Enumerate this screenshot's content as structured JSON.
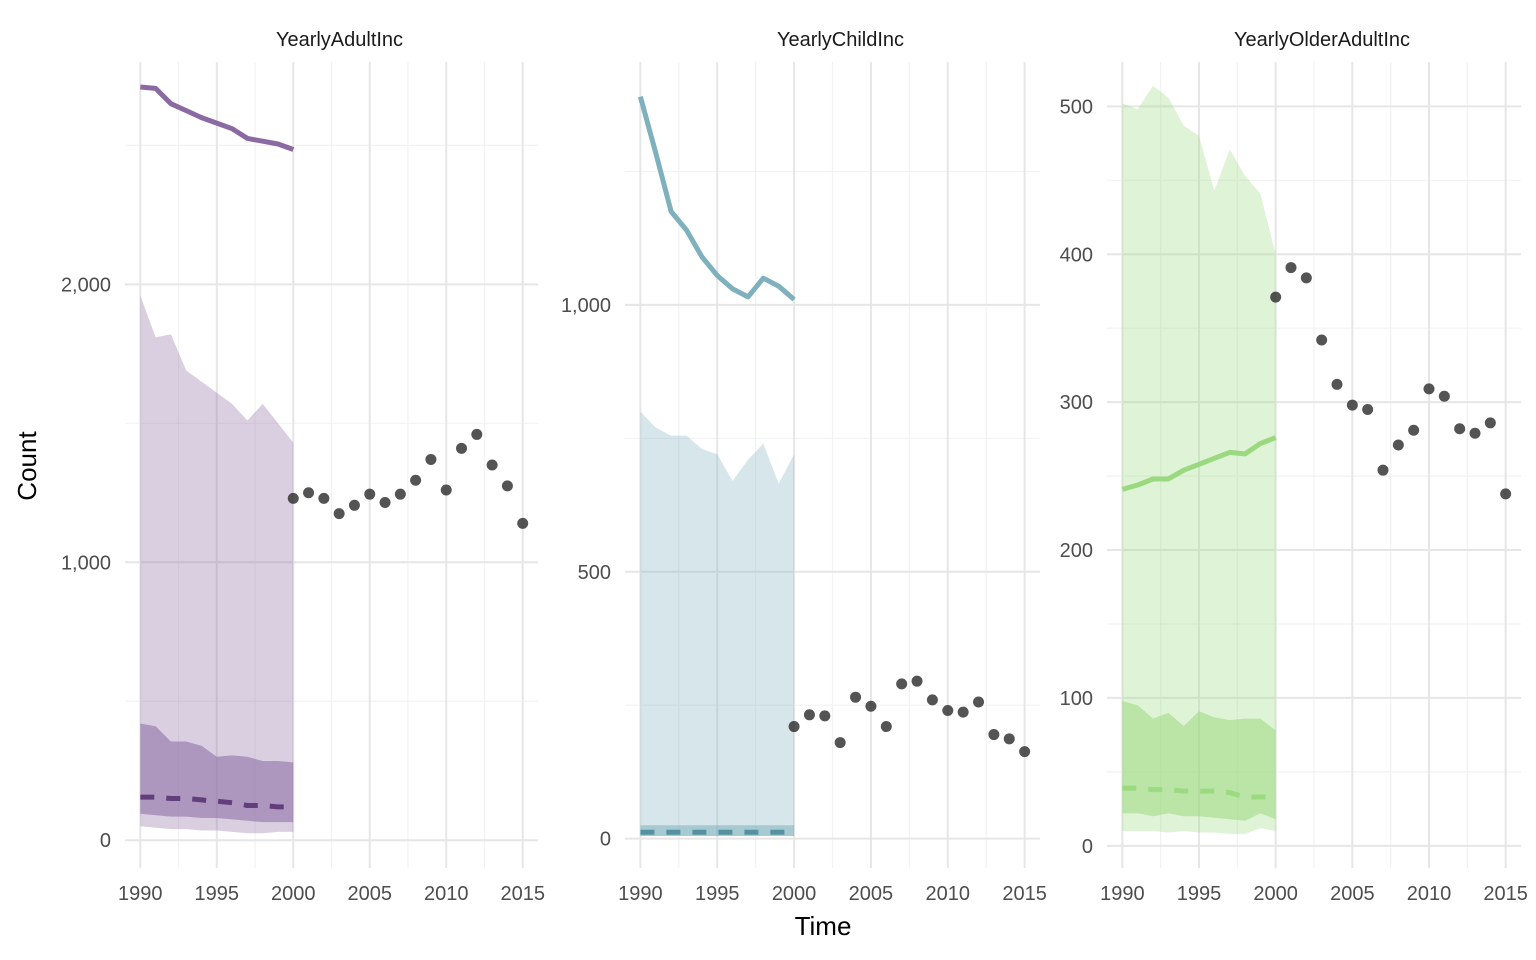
{
  "figure": {
    "xlabel": "Time",
    "ylabel": "Count"
  },
  "colors": {
    "background": "#ffffff",
    "grid_major": "#e6e6e6",
    "grid_minor": "#f2f2f2",
    "observed_points": "#2e2e2e"
  },
  "chart_data": [
    {
      "type": "line",
      "title": "YearlyAdultInc",
      "xlim": [
        1989,
        2016
      ],
      "ylim": [
        -100,
        2800
      ],
      "x_ticks": [
        1990,
        1995,
        2000,
        2005,
        2010,
        2015
      ],
      "y_ticks": [
        0,
        1000,
        2000
      ],
      "y_tick_labels": [
        "0",
        "1,000",
        "2,000"
      ],
      "y_minor": [
        500,
        1500,
        2500
      ],
      "color": "#8b6aa3",
      "median_color": "#5e3a78",
      "series": [
        {
          "kind": "solid_line",
          "x": [
            1990,
            1991,
            1992,
            1993,
            1994,
            1995,
            1996,
            1997,
            1998,
            1999,
            2000
          ],
          "y": [
            2710,
            2705,
            2650,
            2625,
            2600,
            2580,
            2560,
            2525,
            2515,
            2505,
            2485
          ]
        },
        {
          "kind": "outer_band",
          "x": [
            1990,
            1991,
            1992,
            1993,
            1994,
            1995,
            1996,
            1997,
            1998,
            1999,
            2000
          ],
          "low": [
            50,
            45,
            40,
            40,
            35,
            35,
            30,
            25,
            25,
            30,
            30
          ],
          "high": [
            1960,
            1810,
            1820,
            1690,
            1650,
            1610,
            1570,
            1510,
            1570,
            1500,
            1430
          ]
        },
        {
          "kind": "inner_band",
          "x": [
            1990,
            1991,
            1992,
            1993,
            1994,
            1995,
            1996,
            1997,
            1998,
            1999,
            2000
          ],
          "low": [
            95,
            90,
            85,
            85,
            80,
            80,
            75,
            70,
            65,
            65,
            65
          ],
          "high": [
            420,
            410,
            355,
            355,
            340,
            300,
            305,
            300,
            285,
            285,
            280
          ]
        },
        {
          "kind": "dashed_line",
          "x": [
            1990,
            1991,
            1992,
            1993,
            1994,
            1995,
            1996,
            1997,
            1998,
            1999,
            2000
          ],
          "y": [
            155,
            155,
            150,
            150,
            145,
            140,
            135,
            125,
            125,
            120,
            120
          ]
        },
        {
          "kind": "points",
          "x": [
            2000,
            2001,
            2002,
            2003,
            2004,
            2005,
            2006,
            2007,
            2008,
            2009,
            2010,
            2011,
            2012,
            2013,
            2014,
            2015
          ],
          "y": [
            1230,
            1250,
            1230,
            1175,
            1205,
            1245,
            1215,
            1245,
            1295,
            1370,
            1260,
            1410,
            1460,
            1350,
            1275,
            1140
          ]
        }
      ]
    },
    {
      "type": "line",
      "title": "YearlyChildInc",
      "xlim": [
        1989,
        2016
      ],
      "ylim": [
        -55,
        1455
      ],
      "x_ticks": [
        1990,
        1995,
        2000,
        2005,
        2010,
        2015
      ],
      "y_ticks": [
        0,
        500,
        1000
      ],
      "y_tick_labels": [
        "0",
        "500",
        "1,000"
      ],
      "y_minor": [
        250,
        750,
        1250
      ],
      "color": "#7fb0bd",
      "median_color": "#4f8f9e",
      "series": [
        {
          "kind": "solid_line",
          "x": [
            1990,
            1991,
            1992,
            1993,
            1994,
            1995,
            1996,
            1997,
            1998,
            1999,
            2000
          ],
          "y": [
            1390,
            1285,
            1175,
            1140,
            1090,
            1055,
            1030,
            1015,
            1050,
            1035,
            1010
          ]
        },
        {
          "kind": "outer_band",
          "x": [
            1990,
            1991,
            1992,
            1993,
            1994,
            1995,
            1996,
            1997,
            1998,
            1999,
            2000
          ],
          "low": [
            5,
            5,
            5,
            5,
            5,
            5,
            5,
            5,
            5,
            5,
            5
          ],
          "high": [
            800,
            770,
            755,
            755,
            730,
            720,
            670,
            710,
            740,
            665,
            720
          ]
        },
        {
          "kind": "inner_band",
          "x": [
            1990,
            1991,
            1992,
            1993,
            1994,
            1995,
            1996,
            1997,
            1998,
            1999,
            2000
          ],
          "low": [
            5,
            5,
            5,
            5,
            5,
            5,
            5,
            5,
            5,
            5,
            5
          ],
          "high": [
            25,
            25,
            25,
            25,
            25,
            25,
            25,
            25,
            25,
            25,
            25
          ]
        },
        {
          "kind": "dashed_line",
          "x": [
            1990,
            1991,
            1992,
            1993,
            1994,
            1995,
            1996,
            1997,
            1998,
            1999,
            2000
          ],
          "y": [
            12,
            12,
            12,
            12,
            12,
            12,
            12,
            12,
            12,
            12,
            12
          ]
        },
        {
          "kind": "points",
          "x": [
            2000,
            2001,
            2002,
            2003,
            2004,
            2005,
            2006,
            2007,
            2008,
            2009,
            2010,
            2011,
            2012,
            2013,
            2014,
            2015
          ],
          "y": [
            210,
            232,
            230,
            180,
            265,
            248,
            210,
            290,
            295,
            260,
            240,
            237,
            256,
            195,
            187,
            163
          ]
        }
      ]
    },
    {
      "type": "line",
      "title": "YearlyOlderAdultInc",
      "xlim": [
        1989,
        2016
      ],
      "ylim": [
        -15,
        530
      ],
      "x_ticks": [
        1990,
        1995,
        2000,
        2005,
        2010,
        2015
      ],
      "y_ticks": [
        0,
        100,
        200,
        300,
        400,
        500
      ],
      "y_tick_labels": [
        "0",
        "100",
        "200",
        "300",
        "400",
        "500"
      ],
      "y_minor": [
        50,
        150,
        250,
        350,
        450
      ],
      "color": "#9ad97f",
      "median_color": "#9ad97f",
      "series": [
        {
          "kind": "solid_line",
          "x": [
            1990,
            1991,
            1992,
            1993,
            1994,
            1995,
            1996,
            1997,
            1998,
            1999,
            2000
          ],
          "y": [
            241,
            244,
            248,
            248,
            254,
            258,
            262,
            266,
            265,
            272,
            276
          ]
        },
        {
          "kind": "outer_band",
          "x": [
            1990,
            1991,
            1992,
            1993,
            1994,
            1995,
            1996,
            1997,
            1998,
            1999,
            2000
          ],
          "low": [
            10,
            10,
            10,
            9,
            10,
            9,
            9,
            8,
            8,
            12,
            10
          ],
          "high": [
            502,
            498,
            514,
            506,
            487,
            480,
            443,
            471,
            453,
            441,
            400
          ]
        },
        {
          "kind": "inner_band",
          "x": [
            1990,
            1991,
            1992,
            1993,
            1994,
            1995,
            1996,
            1997,
            1998,
            1999,
            2000
          ],
          "low": [
            22,
            22,
            20,
            22,
            20,
            20,
            19,
            18,
            17,
            22,
            18
          ],
          "high": [
            98,
            95,
            86,
            90,
            81,
            91,
            87,
            85,
            86,
            86,
            78
          ]
        },
        {
          "kind": "dashed_line",
          "x": [
            1990,
            1991,
            1992,
            1993,
            1994,
            1995,
            1996,
            1997,
            1998,
            1999,
            2000
          ],
          "y": [
            39,
            39,
            38,
            38,
            37,
            37,
            37,
            36,
            33,
            33,
            33
          ]
        },
        {
          "kind": "points",
          "x": [
            2000,
            2001,
            2002,
            2003,
            2004,
            2005,
            2006,
            2007,
            2008,
            2009,
            2010,
            2011,
            2012,
            2013,
            2014,
            2015
          ],
          "y": [
            371,
            391,
            384,
            342,
            312,
            298,
            295,
            254,
            271,
            281,
            309,
            304,
            282,
            279,
            286,
            238
          ]
        }
      ]
    }
  ]
}
